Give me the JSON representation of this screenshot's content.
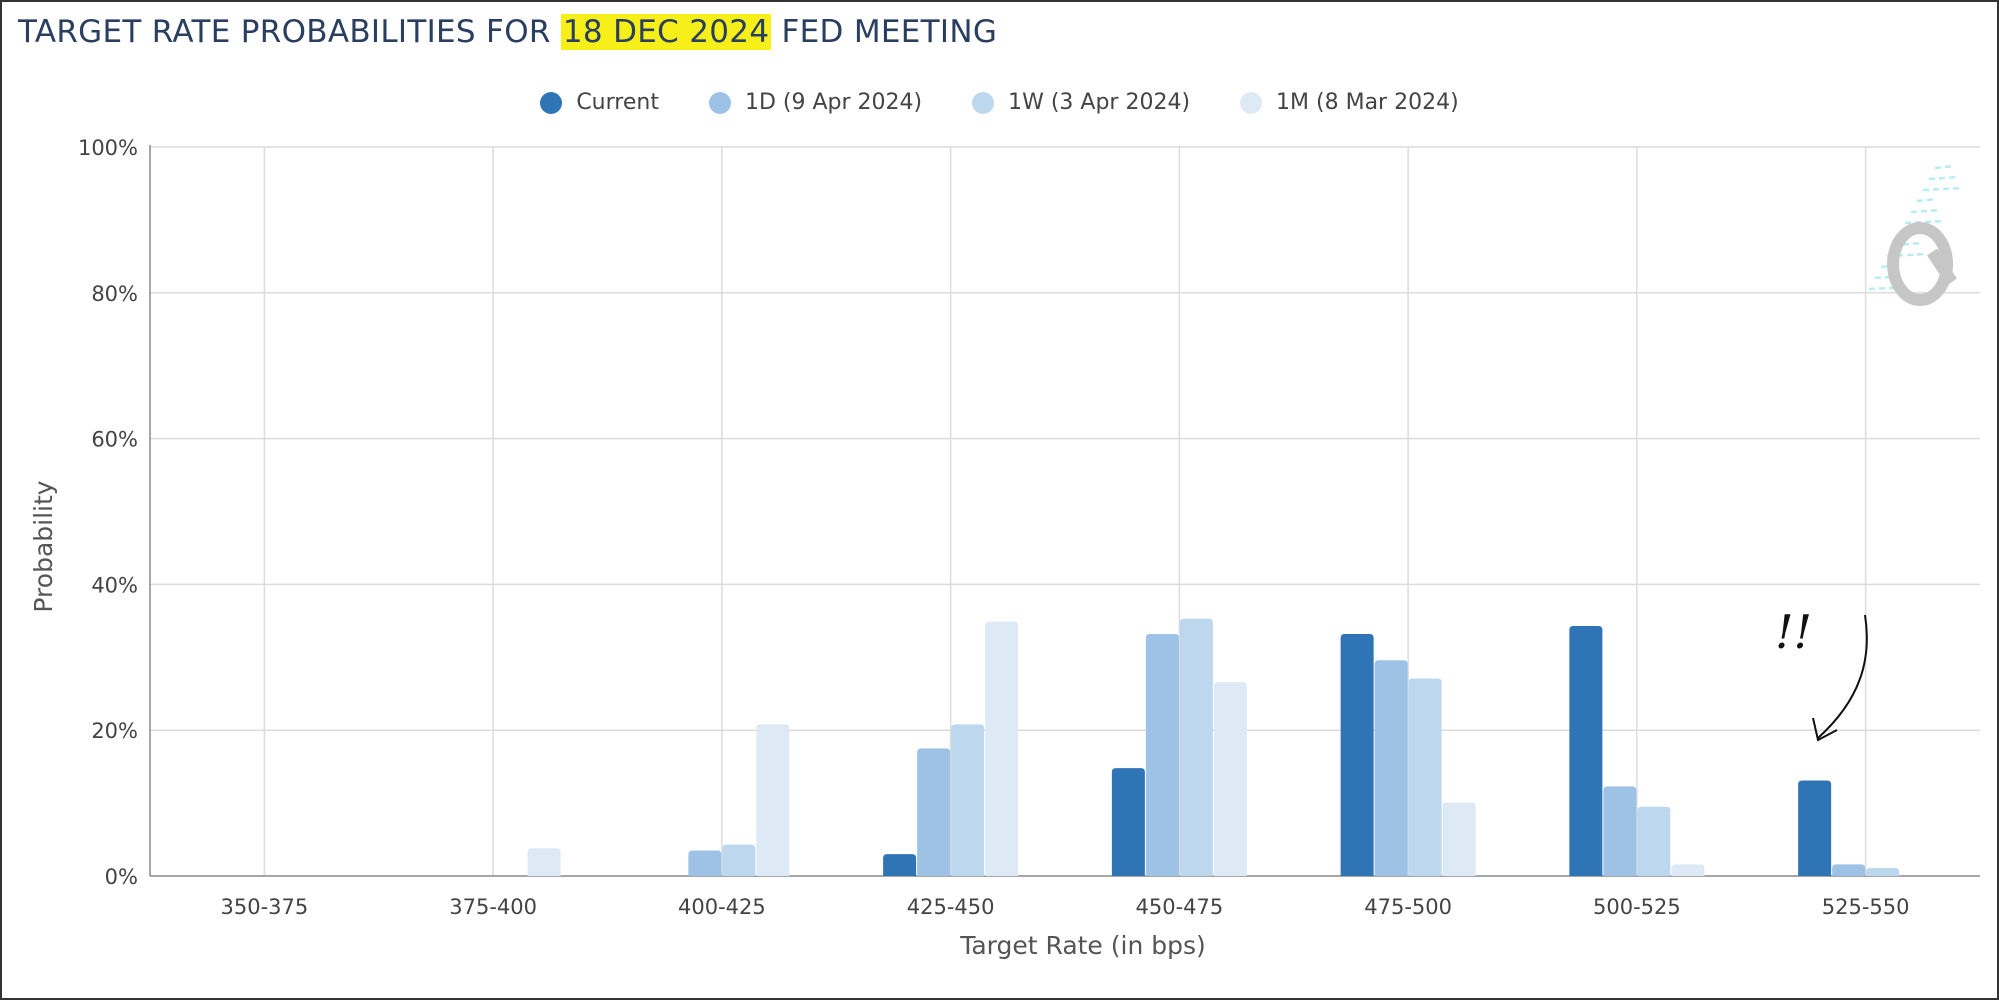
{
  "title": {
    "prefix": "TARGET RATE PROBABILITIES FOR ",
    "highlight": "18 DEC 2024",
    "suffix": " FED MEETING"
  },
  "annotation_text": "!!",
  "chart_data": {
    "type": "bar",
    "categories": [
      "350-375",
      "375-400",
      "400-425",
      "425-450",
      "450-475",
      "475-500",
      "500-525",
      "525-550"
    ],
    "series": [
      {
        "name": "Current",
        "color": "#2f74b5",
        "values": [
          0,
          0,
          0,
          3.0,
          14.8,
          33.2,
          34.3,
          13.1
        ]
      },
      {
        "name": "1D (9 Apr 2024)",
        "color": "#9dc2e6",
        "values": [
          0,
          0,
          3.5,
          17.5,
          33.2,
          29.6,
          12.3,
          1.6
        ]
      },
      {
        "name": "1W (3 Apr 2024)",
        "color": "#bdd7ee",
        "values": [
          0,
          0,
          4.3,
          20.8,
          35.3,
          27.1,
          9.5,
          1.1
        ]
      },
      {
        "name": "1M (8 Mar 2024)",
        "color": "#ddeaf6",
        "values": [
          0,
          3.8,
          20.8,
          34.9,
          26.6,
          10.1,
          1.6,
          0
        ]
      }
    ],
    "xlabel": "Target Rate (in bps)",
    "ylabel": "Probability",
    "ylim": [
      0,
      100
    ],
    "yticks": [
      "0%",
      "20%",
      "40%",
      "60%",
      "80%",
      "100%"
    ],
    "grid": true,
    "legend_position": "top-center"
  }
}
